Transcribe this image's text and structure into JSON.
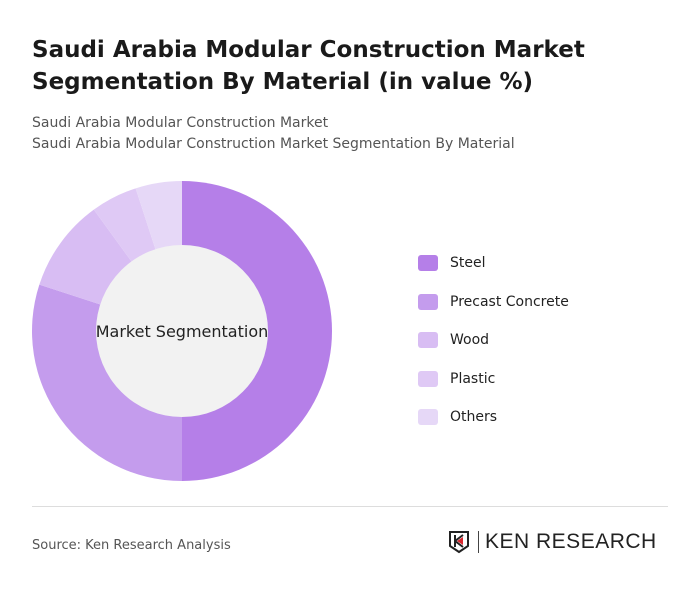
{
  "title": "Saudi Arabia Modular Construction Market Segmentation By Material (in value %)",
  "subtitle1": "Saudi Arabia Modular Construction Market",
  "subtitle2": "Saudi Arabia Modular Construction Market Segmentation By Material",
  "source": "Source: Ken Research Analysis",
  "logo": "KEN RESEARCH",
  "chart_data": {
    "type": "pie",
    "donut": true,
    "center_label": "Market Segmentation",
    "categories": [
      "Steel",
      "Precast Concrete",
      "Wood",
      "Plastic",
      "Others"
    ],
    "values": [
      50,
      30,
      10,
      5,
      5
    ],
    "colors": [
      "#b57fe8",
      "#c49ced",
      "#d8bdf3",
      "#dfc9f5",
      "#e6d8f7"
    ],
    "legend_position": "right"
  }
}
